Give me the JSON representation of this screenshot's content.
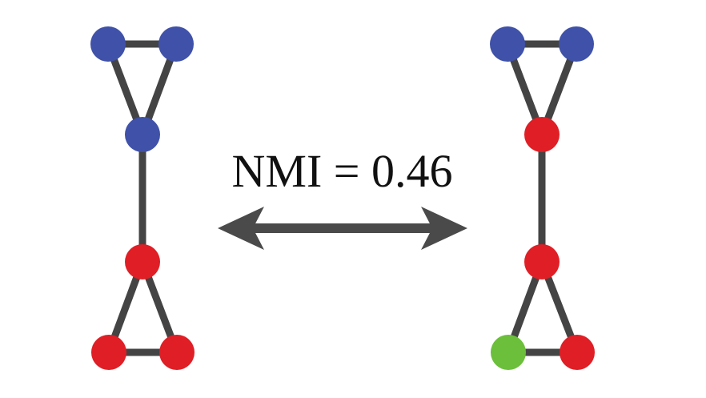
{
  "label": {
    "text": "NMI = 0.46"
  },
  "colors": {
    "edge": "#444444",
    "blue": "#3f51a8",
    "red": "#e01e25",
    "green": "#6bbf3a",
    "arrow": "#4a4a4a"
  },
  "graphs": [
    {
      "name": "left-partition",
      "nodes": [
        {
          "id": "a",
          "community": "blue"
        },
        {
          "id": "b",
          "community": "blue"
        },
        {
          "id": "c",
          "community": "blue"
        },
        {
          "id": "d",
          "community": "red"
        },
        {
          "id": "e",
          "community": "red"
        },
        {
          "id": "f",
          "community": "red"
        }
      ],
      "edges": [
        [
          "a",
          "b"
        ],
        [
          "a",
          "c"
        ],
        [
          "b",
          "c"
        ],
        [
          "c",
          "d"
        ],
        [
          "d",
          "e"
        ],
        [
          "d",
          "f"
        ],
        [
          "e",
          "f"
        ]
      ]
    },
    {
      "name": "right-partition",
      "nodes": [
        {
          "id": "a",
          "community": "blue"
        },
        {
          "id": "b",
          "community": "blue"
        },
        {
          "id": "c",
          "community": "red"
        },
        {
          "id": "d",
          "community": "red"
        },
        {
          "id": "e",
          "community": "green"
        },
        {
          "id": "f",
          "community": "red"
        }
      ],
      "edges": [
        [
          "a",
          "b"
        ],
        [
          "a",
          "c"
        ],
        [
          "b",
          "c"
        ],
        [
          "c",
          "d"
        ],
        [
          "d",
          "e"
        ],
        [
          "d",
          "f"
        ],
        [
          "e",
          "f"
        ]
      ]
    }
  ]
}
